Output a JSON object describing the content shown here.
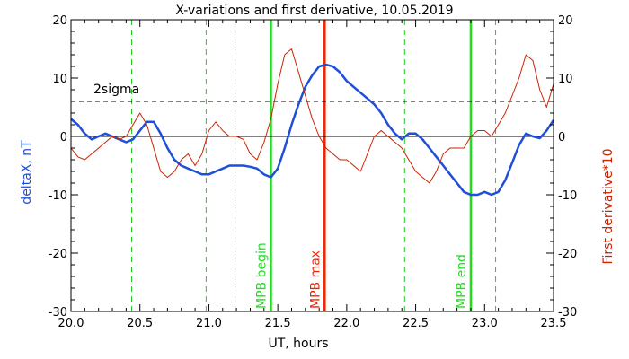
{
  "chart_data": {
    "type": "line",
    "title": "X-variations and first derivative, 10.05.2019",
    "xlabel": "UT, hours",
    "ylabel_left": "deltaX, nT",
    "ylabel_right": "First derivative*10",
    "xlim": [
      20.0,
      23.5
    ],
    "ylim": [
      -30,
      20
    ],
    "xticks": [
      "20.0",
      "20.5",
      "21.0",
      "21.5",
      "22.0",
      "22.5",
      "23.0",
      "23.5"
    ],
    "xtick_values": [
      20.0,
      20.5,
      21.0,
      21.5,
      22.0,
      22.5,
      23.0,
      23.5
    ],
    "yticks_left": [
      "-30",
      "-20",
      "-10",
      "0",
      "10",
      "20"
    ],
    "yticks_right": [
      "-30",
      "-20",
      "-10",
      "0",
      "10",
      "20"
    ],
    "ytick_values": [
      -30,
      -20,
      -10,
      0,
      10,
      20
    ],
    "sigma_label": "2sigma",
    "sigma_level": 6,
    "zero_level": 0,
    "colors": {
      "deltaX": "#1f4fd8",
      "derivative": "#cc2200",
      "mpb_bounds": "#22dd22",
      "mpb_max": "#ee2200",
      "minor_markers": "#22cc22",
      "axes": "#000000"
    },
    "dashed_markers": [
      20.44,
      20.98,
      21.19,
      22.42,
      23.08
    ],
    "vertical_markers": [
      {
        "label": "MPB begin",
        "x": 21.45,
        "kind": "bound"
      },
      {
        "label": "MPB max",
        "x": 21.84,
        "kind": "max"
      },
      {
        "label": "MPB end",
        "x": 22.9,
        "kind": "bound"
      }
    ],
    "series": [
      {
        "name": "deltaX",
        "axis": "left",
        "x": [
          20.0,
          20.05,
          20.1,
          20.15,
          20.2,
          20.25,
          20.3,
          20.35,
          20.4,
          20.45,
          20.5,
          20.55,
          20.6,
          20.65,
          20.7,
          20.75,
          20.8,
          20.85,
          20.9,
          20.95,
          21.0,
          21.05,
          21.1,
          21.15,
          21.2,
          21.25,
          21.3,
          21.35,
          21.4,
          21.45,
          21.5,
          21.55,
          21.6,
          21.65,
          21.7,
          21.75,
          21.8,
          21.85,
          21.9,
          21.95,
          22.0,
          22.05,
          22.1,
          22.15,
          22.2,
          22.25,
          22.3,
          22.35,
          22.4,
          22.45,
          22.5,
          22.55,
          22.6,
          22.65,
          22.7,
          22.75,
          22.8,
          22.85,
          22.9,
          22.95,
          23.0,
          23.05,
          23.1,
          23.15,
          23.2,
          23.25,
          23.3,
          23.35,
          23.4,
          23.45,
          23.5
        ],
        "y": [
          3,
          2,
          0.5,
          -0.5,
          0,
          0.5,
          0,
          -0.5,
          -1,
          -0.5,
          1,
          2.5,
          2.5,
          0.5,
          -2,
          -4,
          -5,
          -5.5,
          -6,
          -6.5,
          -6.5,
          -6,
          -5.5,
          -5,
          -5,
          -5,
          -5.2,
          -5.5,
          -6.5,
          -7,
          -5.5,
          -2,
          2,
          5.5,
          8.5,
          10.5,
          12,
          12.3,
          12,
          11,
          9.5,
          8.5,
          7.5,
          6.5,
          5.5,
          4,
          2,
          0.5,
          -0.5,
          0.5,
          0.5,
          -0.5,
          -2,
          -3.5,
          -5,
          -6.5,
          -8,
          -9.5,
          -10,
          -10,
          -9.5,
          -10,
          -9.5,
          -7.5,
          -4.5,
          -1.5,
          0.5,
          0,
          -0.3,
          1,
          2.8
        ]
      },
      {
        "name": "First derivative*10",
        "axis": "right",
        "x": [
          20.0,
          20.05,
          20.1,
          20.15,
          20.2,
          20.25,
          20.3,
          20.35,
          20.4,
          20.45,
          20.5,
          20.55,
          20.6,
          20.65,
          20.7,
          20.75,
          20.8,
          20.85,
          20.9,
          20.95,
          21.0,
          21.05,
          21.1,
          21.15,
          21.2,
          21.25,
          21.3,
          21.35,
          21.4,
          21.45,
          21.5,
          21.55,
          21.6,
          21.65,
          21.7,
          21.75,
          21.8,
          21.85,
          21.9,
          21.95,
          22.0,
          22.05,
          22.1,
          22.15,
          22.2,
          22.25,
          22.3,
          22.35,
          22.4,
          22.45,
          22.5,
          22.55,
          22.6,
          22.65,
          22.7,
          22.75,
          22.8,
          22.85,
          22.9,
          22.95,
          23.0,
          23.05,
          23.1,
          23.15,
          23.2,
          23.25,
          23.3,
          23.35,
          23.4,
          23.45,
          23.5
        ],
        "y": [
          -2,
          -3.5,
          -4,
          -3,
          -2,
          -1,
          0,
          -0.5,
          0,
          2,
          4,
          2,
          -2,
          -6,
          -7,
          -6,
          -4,
          -3,
          -5,
          -3,
          1,
          2.5,
          1,
          0,
          0,
          -0.5,
          -3,
          -4,
          -1,
          3,
          9,
          14,
          15,
          11,
          7,
          3,
          0,
          -2,
          -3,
          -4,
          -4,
          -5,
          -6,
          -3,
          0,
          1,
          0,
          -1,
          -2,
          -4,
          -6,
          -7,
          -8,
          -6,
          -3,
          -2,
          -2,
          -2,
          0,
          1,
          1,
          0,
          2,
          4,
          7,
          10,
          14,
          13,
          8,
          5,
          9
        ]
      }
    ]
  }
}
